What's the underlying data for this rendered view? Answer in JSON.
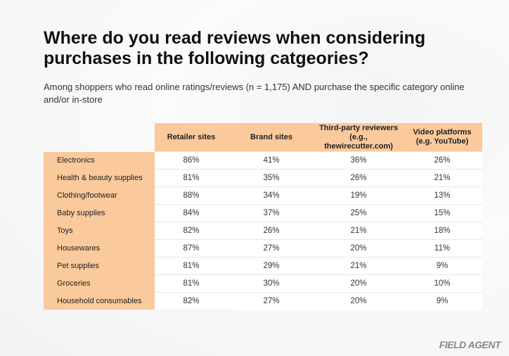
{
  "header": {
    "title": "Where do you read reviews when considering purchases in the following catgeories?",
    "subtitle": "Among shoppers who read online ratings/reviews (n = 1,175) AND purchase the specific category online and/or in-store"
  },
  "table": {
    "columns": [
      "Retailer sites",
      "Brand sites",
      "Third-party reviewers\n(e.g., thewirecutter.com)",
      "Video platforms\n(e.g. YouTube)"
    ],
    "rows": [
      [
        "Electronics",
        "86%",
        "41%",
        "36%",
        "26%"
      ],
      [
        "Health & beauty supplies",
        "81%",
        "35%",
        "26%",
        "21%"
      ],
      [
        "Clothing/footwear",
        "88%",
        "34%",
        "19%",
        "13%"
      ],
      [
        "Baby supplies",
        "84%",
        "37%",
        "25%",
        "15%"
      ],
      [
        "Toys",
        "82%",
        "26%",
        "21%",
        "18%"
      ],
      [
        "Housewares",
        "87%",
        "27%",
        "20%",
        "11%"
      ],
      [
        "Pet supplies",
        "81%",
        "29%",
        "21%",
        "9%"
      ],
      [
        "Groceries",
        "81%",
        "30%",
        "20%",
        "10%"
      ],
      [
        "Household consumables",
        "82%",
        "27%",
        "20%",
        "9%"
      ]
    ]
  },
  "footer": {
    "brand": "FIELD AGENT"
  }
}
